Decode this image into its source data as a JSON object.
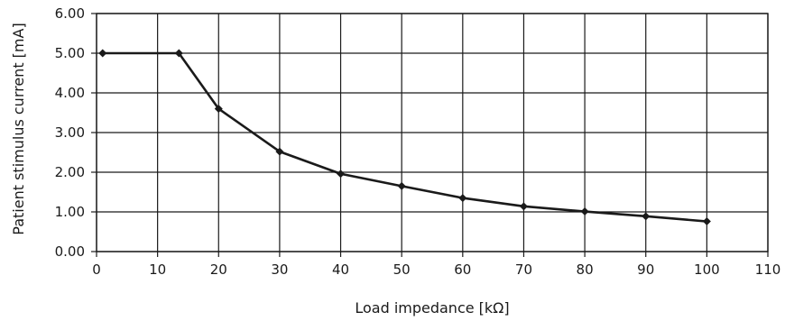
{
  "chart_data": {
    "type": "line",
    "title": "",
    "xlabel": "Load impedance [kΩ]",
    "ylabel": "Patient stimulus current [mA]",
    "xlim": [
      0,
      110
    ],
    "ylim": [
      0,
      6
    ],
    "grid": true,
    "x_ticks": [
      0,
      10,
      20,
      30,
      40,
      50,
      60,
      70,
      80,
      90,
      100,
      110
    ],
    "x_tick_labels": [
      "0",
      "10",
      "20",
      "30",
      "40",
      "50",
      "60",
      "70",
      "80",
      "90",
      "100",
      "110"
    ],
    "y_ticks": [
      0,
      1,
      2,
      3,
      4,
      5,
      6
    ],
    "y_tick_labels": [
      "0.00",
      "1.00",
      "2.00",
      "3.00",
      "4.00",
      "5.00",
      "6.00"
    ],
    "series": [
      {
        "x": [
          1,
          13.5,
          20,
          30,
          40,
          50,
          60,
          70,
          80,
          90,
          100
        ],
        "y": [
          5.0,
          5.0,
          3.6,
          2.52,
          1.96,
          1.65,
          1.35,
          1.14,
          1.01,
          0.89,
          0.76
        ]
      }
    ],
    "colors": {
      "line": "#1a1a1a",
      "grid": "#1a1a1a"
    },
    "marker": "diamond"
  }
}
